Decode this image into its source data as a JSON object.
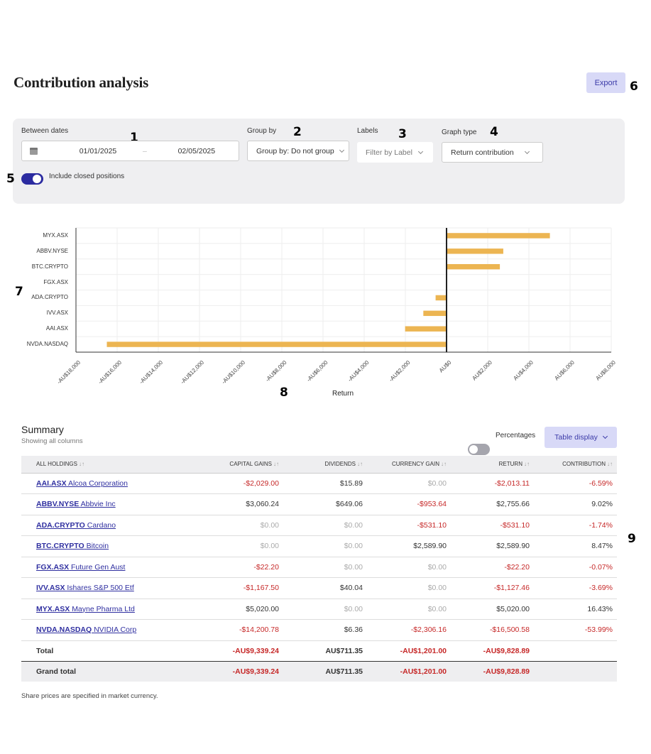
{
  "page": {
    "title": "Contribution analysis",
    "export_label": "Export"
  },
  "markers": [
    "1",
    "2",
    "3",
    "4",
    "5",
    "6",
    "7",
    "8",
    "9"
  ],
  "filters": {
    "between_dates_label": "Between dates",
    "date_from": "01/01/2025",
    "date_separator": "–",
    "date_to": "02/05/2025",
    "group_by_label": "Group by",
    "group_by_value": "Group by: Do not group",
    "labels_label": "Labels",
    "labels_placeholder": "Filter by Label",
    "graph_type_label": "Graph type",
    "graph_type_value": "Return contribution",
    "include_closed_label": "Include closed positions",
    "include_closed_on": true
  },
  "colors": {
    "accent": "#2b2ba0",
    "bar": "#ecb552",
    "negative": "#c62828",
    "export_bg": "#d8d9f7"
  },
  "chart_data": {
    "type": "bar",
    "orientation": "horizontal",
    "categories": [
      "MYX.ASX",
      "ABBV.NYSE",
      "BTC.CRYPTO",
      "FGX.ASX",
      "ADA.CRYPTO",
      "IVV.ASX",
      "AAI.ASX",
      "NVDA.NASDAQ"
    ],
    "values": [
      5020.0,
      2755.66,
      2589.9,
      -22.2,
      -531.1,
      -1127.46,
      -2013.11,
      -16500.58
    ],
    "xlabel": "Return",
    "ylabel": "",
    "xlim": [
      -18000,
      8000
    ],
    "x_ticks": [
      "-AU$18,000",
      "-AU$16,000",
      "-AU$14,000",
      "-AU$12,000",
      "-AU$10,000",
      "-AU$8,000",
      "-AU$6,000",
      "-AU$4,000",
      "-AU$2,000",
      "AU$0",
      "AU$2,000",
      "AU$4,000",
      "AU$6,000",
      "AU$8,000"
    ],
    "grid": true,
    "legend": "none"
  },
  "summary": {
    "title": "Summary",
    "subtitle": "Showing all columns",
    "percentages_label": "Percentages",
    "percentages_on": false,
    "table_display_label": "Table display",
    "columns": [
      "ALL HOLDINGS",
      "CAPITAL GAINS",
      "DIVIDENDS",
      "CURRENCY GAIN",
      "RETURN",
      "CONTRIBUTION"
    ],
    "rows": [
      {
        "ticker": "AAI.ASX",
        "name": "Alcoa Corporation",
        "cap": "-$2,029.00",
        "div": "$15.89",
        "cur": "$0.00",
        "ret": "-$2,013.11",
        "con": "-6.59%"
      },
      {
        "ticker": "ABBV.NYSE",
        "name": "Abbvie Inc",
        "cap": "$3,060.24",
        "div": "$649.06",
        "cur": "-$953.64",
        "ret": "$2,755.66",
        "con": "9.02%"
      },
      {
        "ticker": "ADA.CRYPTO",
        "name": "Cardano",
        "cap": "$0.00",
        "div": "$0.00",
        "cur": "-$531.10",
        "ret": "-$531.10",
        "con": "-1.74%"
      },
      {
        "ticker": "BTC.CRYPTO",
        "name": "Bitcoin",
        "cap": "$0.00",
        "div": "$0.00",
        "cur": "$2,589.90",
        "ret": "$2,589.90",
        "con": "8.47%"
      },
      {
        "ticker": "FGX.ASX",
        "name": "Future Gen Aust",
        "cap": "-$22.20",
        "div": "$0.00",
        "cur": "$0.00",
        "ret": "-$22.20",
        "con": "-0.07%"
      },
      {
        "ticker": "IVV.ASX",
        "name": "Ishares S&P 500 Etf",
        "cap": "-$1,167.50",
        "div": "$40.04",
        "cur": "$0.00",
        "ret": "-$1,127.46",
        "con": "-3.69%"
      },
      {
        "ticker": "MYX.ASX",
        "name": "Mayne Pharma Ltd",
        "cap": "$5,020.00",
        "div": "$0.00",
        "cur": "$0.00",
        "ret": "$5,020.00",
        "con": "16.43%"
      },
      {
        "ticker": "NVDA.NASDAQ",
        "name": "NVIDIA Corp",
        "cap": "-$14,200.78",
        "div": "$6.36",
        "cur": "-$2,306.16",
        "ret": "-$16,500.58",
        "con": "-53.99%"
      }
    ],
    "total": {
      "label": "Total",
      "cap": "-AU$9,339.24",
      "div": "AU$711.35",
      "cur": "-AU$1,201.00",
      "ret": "-AU$9,828.89",
      "con": ""
    },
    "grand_total": {
      "label": "Grand total",
      "cap": "-AU$9,339.24",
      "div": "AU$711.35",
      "cur": "-AU$1,201.00",
      "ret": "-AU$9,828.89",
      "con": ""
    },
    "footnote": "Share prices are specified in market currency."
  }
}
